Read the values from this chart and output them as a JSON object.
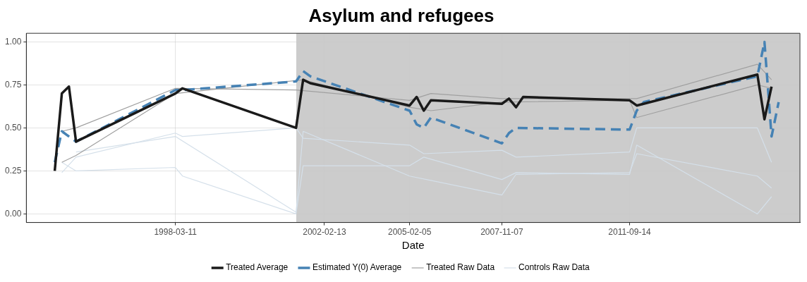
{
  "chart_data": {
    "type": "line",
    "title": "Asylum and refugees",
    "xlabel": "Date",
    "categories": [
      null,
      null,
      null,
      null,
      null,
      null,
      null,
      null,
      null,
      null,
      null,
      null,
      null,
      null,
      null,
      null,
      null,
      null,
      null,
      null,
      null,
      "1998-03-11",
      null,
      null,
      null,
      null,
      null,
      null,
      null,
      null,
      null,
      null,
      null,
      null,
      null,
      null,
      null,
      null,
      null,
      null,
      null,
      null,
      "2002-02-13",
      null,
      null,
      null,
      null,
      null,
      null,
      null,
      null,
      null,
      null,
      null,
      "2005-02-05",
      null,
      null,
      null,
      null,
      null,
      null,
      null,
      null,
      null,
      null,
      null,
      null,
      "2007-11-07",
      null,
      null,
      null,
      null,
      null,
      null,
      null,
      null,
      null,
      null,
      null,
      null,
      null,
      null,
      null,
      null,
      null,
      "2011-09-14",
      null,
      null,
      null,
      null,
      null,
      null,
      null,
      null,
      null,
      null,
      null,
      null,
      null,
      null,
      null,
      null,
      null,
      null,
      null,
      null,
      null,
      null,
      null,
      null
    ],
    "ylim": [
      -0.05,
      1.05
    ],
    "yticks": [
      {
        "value": 0,
        "label": "0.00"
      },
      {
        "value": 0.25,
        "label": "0.25"
      },
      {
        "value": 0.5,
        "label": "0.50"
      },
      {
        "value": 0.75,
        "label": "0.75"
      },
      {
        "value": 1,
        "label": "1.00"
      }
    ],
    "grid": true,
    "legend": "bottom",
    "marker": "none",
    "series": [
      {
        "name": "Treated Average",
        "color": "#1a1a1a",
        "values": [
          null,
          null,
          null,
          null,
          0.25,
          0.7,
          0.74,
          0.42,
          null,
          null,
          null,
          null,
          null,
          null,
          null,
          null,
          null,
          null,
          null,
          null,
          null,
          0.7,
          0.73,
          null,
          null,
          null,
          null,
          null,
          null,
          null,
          null,
          null,
          null,
          null,
          null,
          null,
          null,
          null,
          0.5,
          0.78,
          0.76,
          null,
          null,
          null,
          null,
          null,
          null,
          null,
          null,
          null,
          null,
          null,
          null,
          null,
          0.63,
          0.68,
          0.6,
          0.66,
          null,
          null,
          null,
          null,
          null,
          null,
          null,
          null,
          null,
          0.64,
          0.67,
          0.62,
          0.68,
          null,
          null,
          null,
          null,
          null,
          null,
          null,
          null,
          null,
          null,
          null,
          null,
          null,
          null,
          0.66,
          0.63,
          null,
          null,
          null,
          null,
          null,
          null,
          null,
          null,
          null,
          null,
          null,
          null,
          null,
          null,
          null,
          null,
          0.81,
          0.55,
          0.74,
          null,
          null,
          null,
          null
        ]
      },
      {
        "name": "Estimated Y(0) Average",
        "color": "#4682b4",
        "line_style": "dashed",
        "values": [
          null,
          null,
          null,
          null,
          0.3,
          0.48,
          null,
          0.42,
          null,
          null,
          null,
          null,
          null,
          null,
          null,
          null,
          null,
          null,
          null,
          null,
          null,
          0.72,
          0.72,
          null,
          null,
          null,
          null,
          null,
          null,
          null,
          null,
          null,
          null,
          null,
          null,
          null,
          null,
          null,
          0.77,
          0.83,
          0.8,
          null,
          null,
          null,
          null,
          null,
          null,
          null,
          null,
          null,
          null,
          null,
          null,
          null,
          0.6,
          0.52,
          0.5,
          0.56,
          null,
          null,
          null,
          null,
          null,
          null,
          null,
          null,
          null,
          0.41,
          0.47,
          0.5,
          null,
          null,
          null,
          null,
          null,
          null,
          null,
          null,
          null,
          null,
          null,
          null,
          null,
          null,
          null,
          0.49,
          0.6,
          0.65,
          null,
          null,
          null,
          null,
          null,
          null,
          null,
          null,
          null,
          null,
          null,
          null,
          null,
          null,
          null,
          0.8,
          1.0,
          0.45,
          0.65,
          null,
          null,
          null
        ]
      },
      {
        "name": "Treated Raw Data",
        "color": "#a0a0a0",
        "values": [
          null,
          null,
          null,
          null,
          null,
          0.48,
          null,
          0.5,
          null,
          null,
          null,
          null,
          null,
          null,
          null,
          null,
          null,
          null,
          null,
          null,
          null,
          0.73,
          null,
          null,
          null,
          null,
          null,
          null,
          null,
          null,
          null,
          null,
          null,
          null,
          null,
          null,
          null,
          null,
          0.72,
          null,
          null,
          null,
          null,
          null,
          null,
          null,
          null,
          null,
          null,
          null,
          null,
          null,
          null,
          null,
          0.66,
          null,
          null,
          0.7,
          null,
          null,
          null,
          null,
          null,
          null,
          null,
          null,
          null,
          0.67,
          null,
          null,
          null,
          null,
          null,
          null,
          null,
          null,
          null,
          null,
          null,
          null,
          null,
          null,
          null,
          null,
          null,
          0.67,
          0.67,
          null,
          null,
          null,
          null,
          null,
          null,
          null,
          null,
          null,
          null,
          null,
          null,
          null,
          null,
          null,
          null,
          0.87,
          null,
          0.78,
          null,
          null,
          null,
          null
        ]
      },
      {
        "color": "#a0a0a0",
        "values": [
          null,
          null,
          null,
          null,
          null,
          0.3,
          null,
          0.34,
          null,
          null,
          null,
          null,
          null,
          null,
          null,
          null,
          null,
          null,
          null,
          null,
          null,
          0.7,
          null,
          null,
          null,
          null,
          null,
          null,
          null,
          null,
          null,
          null,
          null,
          null,
          null,
          null,
          null,
          null,
          null,
          0.78,
          null,
          null,
          null,
          null,
          null,
          null,
          null,
          null,
          null,
          null,
          null,
          null,
          null,
          null,
          0.62,
          null,
          null,
          0.6,
          null,
          null,
          null,
          null,
          null,
          null,
          null,
          null,
          null,
          0.65,
          null,
          null,
          null,
          null,
          null,
          null,
          null,
          null,
          null,
          null,
          null,
          null,
          null,
          null,
          null,
          null,
          null,
          0.66,
          0.56,
          null,
          null,
          null,
          null,
          null,
          null,
          null,
          null,
          null,
          null,
          null,
          null,
          null,
          null,
          null,
          null,
          0.75,
          null,
          0.73,
          null,
          null,
          null,
          null
        ]
      },
      {
        "name": "Controls Raw Data",
        "color": "#d5e0ea",
        "values": [
          null,
          null,
          null,
          null,
          null,
          0.24,
          null,
          0.33,
          null,
          null,
          null,
          null,
          null,
          null,
          null,
          null,
          null,
          null,
          null,
          null,
          null,
          0.47,
          0.45,
          null,
          null,
          null,
          null,
          null,
          null,
          null,
          null,
          null,
          null,
          null,
          null,
          null,
          null,
          null,
          0.5,
          0.44,
          null,
          null,
          null,
          null,
          null,
          null,
          null,
          null,
          null,
          null,
          null,
          null,
          null,
          null,
          0.4,
          null,
          0.35,
          null,
          null,
          null,
          null,
          null,
          null,
          null,
          null,
          null,
          null,
          0.37,
          null,
          0.33,
          null,
          null,
          null,
          null,
          null,
          null,
          null,
          null,
          null,
          null,
          null,
          null,
          null,
          null,
          null,
          0.36,
          0.5,
          null,
          null,
          null,
          null,
          null,
          null,
          null,
          null,
          null,
          null,
          null,
          null,
          null,
          null,
          null,
          null,
          0.5,
          null,
          0.3,
          null,
          null,
          null,
          null
        ]
      },
      {
        "color": "#d5e0ea",
        "values": [
          null,
          null,
          null,
          null,
          null,
          0.3,
          null,
          0.25,
          null,
          null,
          null,
          null,
          null,
          null,
          null,
          null,
          null,
          null,
          null,
          null,
          null,
          0.27,
          0.22,
          null,
          null,
          null,
          null,
          null,
          null,
          null,
          null,
          null,
          null,
          null,
          null,
          null,
          null,
          null,
          0.0,
          0.28,
          null,
          null,
          null,
          null,
          null,
          null,
          null,
          null,
          null,
          null,
          null,
          null,
          null,
          null,
          0.28,
          null,
          0.33,
          null,
          null,
          null,
          null,
          null,
          null,
          null,
          null,
          null,
          null,
          0.2,
          null,
          0.24,
          null,
          null,
          null,
          null,
          null,
          null,
          null,
          null,
          null,
          null,
          null,
          null,
          null,
          null,
          null,
          0.23,
          0.4,
          null,
          null,
          null,
          null,
          null,
          null,
          null,
          null,
          null,
          null,
          null,
          null,
          null,
          null,
          null,
          null,
          0.0,
          null,
          0.1,
          null,
          null,
          null,
          null
        ]
      },
      {
        "color": "#d5e0ea",
        "values": [
          null,
          null,
          null,
          null,
          null,
          null,
          null,
          0.36,
          null,
          null,
          null,
          null,
          null,
          null,
          null,
          null,
          null,
          null,
          null,
          null,
          null,
          0.45,
          null,
          null,
          null,
          null,
          null,
          null,
          null,
          null,
          null,
          null,
          null,
          null,
          null,
          null,
          null,
          null,
          0.01,
          0.48,
          null,
          null,
          null,
          null,
          null,
          null,
          null,
          null,
          null,
          null,
          null,
          null,
          null,
          null,
          0.22,
          null,
          null,
          null,
          null,
          null,
          null,
          null,
          null,
          null,
          null,
          null,
          null,
          0.11,
          null,
          0.23,
          null,
          null,
          null,
          null,
          null,
          null,
          null,
          null,
          null,
          null,
          null,
          null,
          null,
          null,
          null,
          0.24,
          0.35,
          null,
          null,
          null,
          null,
          null,
          null,
          null,
          null,
          null,
          null,
          null,
          null,
          null,
          null,
          null,
          null,
          0.22,
          null,
          0.15,
          null,
          null,
          null,
          null
        ]
      }
    ]
  }
}
